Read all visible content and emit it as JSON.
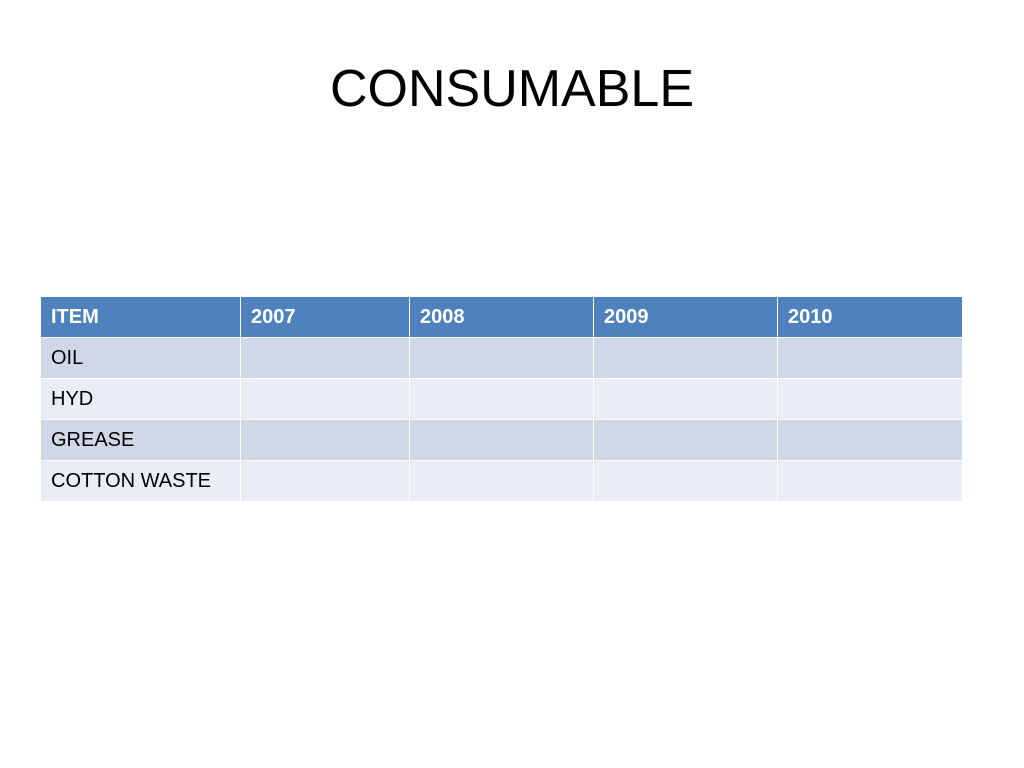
{
  "title": "CONSUMABLE",
  "table": {
    "headers": [
      "ITEM",
      "2007",
      "2008",
      "2009",
      "2010"
    ],
    "rows": [
      [
        "OIL",
        "",
        "",
        "",
        ""
      ],
      [
        "HYD",
        "",
        "",
        "",
        ""
      ],
      [
        "GREASE",
        "",
        "",
        "",
        ""
      ],
      [
        "COTTON WASTE",
        "",
        "",
        "",
        ""
      ]
    ]
  },
  "colors": {
    "header_bg": "#4f81bd",
    "header_text": "#ffffff",
    "row_odd_bg": "#d0d8e8",
    "row_even_bg": "#e9edf4"
  }
}
